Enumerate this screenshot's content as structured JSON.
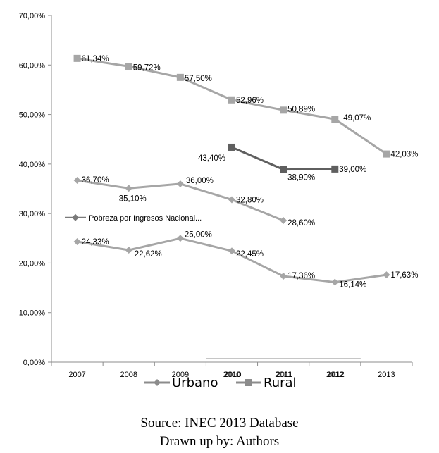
{
  "chart_data": {
    "type": "line",
    "y_ticks": [
      "0,00%",
      "10,00%",
      "20,00%",
      "30,00%",
      "40,00%",
      "50,00%",
      "60,00%",
      "70,00%"
    ],
    "x_ticks": [
      "2007",
      "2008",
      "2009",
      "2010",
      "2011",
      "2012",
      "2013"
    ],
    "x_ticks_overprint": [
      "2010",
      "2011",
      "2012"
    ],
    "ylim": [
      0,
      70
    ],
    "legend": {
      "placement": "bottom-center",
      "entries": [
        {
          "name": "Urbano",
          "marker": "diamond"
        },
        {
          "name": "Rural",
          "marker": "square"
        }
      ]
    },
    "inline_legend": "Pobreza por Ingresos Nacional...",
    "series": [
      {
        "name": "Rural",
        "marker": "square",
        "color": "#A6A6A6",
        "x": [
          "2007",
          "2008",
          "2009",
          "2010",
          "2011",
          "2012",
          "2013"
        ],
        "values": [
          61.34,
          59.72,
          57.5,
          52.96,
          50.89,
          49.07,
          42.03
        ],
        "labels": [
          "61,34%",
          "59,72%",
          "57,50%",
          "52,96%",
          "50,89%",
          "49,07%",
          "42,03%"
        ]
      },
      {
        "marker": "square",
        "color": "#5F5F5F",
        "x": [
          "2010",
          "2011",
          "2012"
        ],
        "values": [
          43.4,
          38.9,
          39.0
        ],
        "labels": [
          "43,40%",
          "38,90%",
          "39,00%"
        ]
      },
      {
        "name": "Pobreza por Ingresos Nacional...",
        "marker": "diamond",
        "color": "#A6A6A6",
        "x": [
          "2007",
          "2008",
          "2009",
          "2010",
          "2011"
        ],
        "values": [
          36.7,
          35.1,
          36.0,
          32.8,
          28.6
        ],
        "labels": [
          "36,70%",
          "35,10%",
          "36,00%",
          "32,80%",
          "28,60%"
        ]
      },
      {
        "name": "Urbano",
        "marker": "diamond",
        "color": "#A6A6A6",
        "x": [
          "2007",
          "2008",
          "2009",
          "2010",
          "2011",
          "2012",
          "2013"
        ],
        "values": [
          24.33,
          22.62,
          25.0,
          22.45,
          17.36,
          16.14,
          17.63
        ],
        "labels": [
          "24,33%",
          "22,62%",
          "25,00%",
          "22,45%",
          "17,36%",
          "16,14%",
          "17,63%"
        ]
      }
    ]
  },
  "caption": {
    "source": "Source: INEC 2013 Database",
    "drawn_by": "Drawn up by: Authors"
  }
}
